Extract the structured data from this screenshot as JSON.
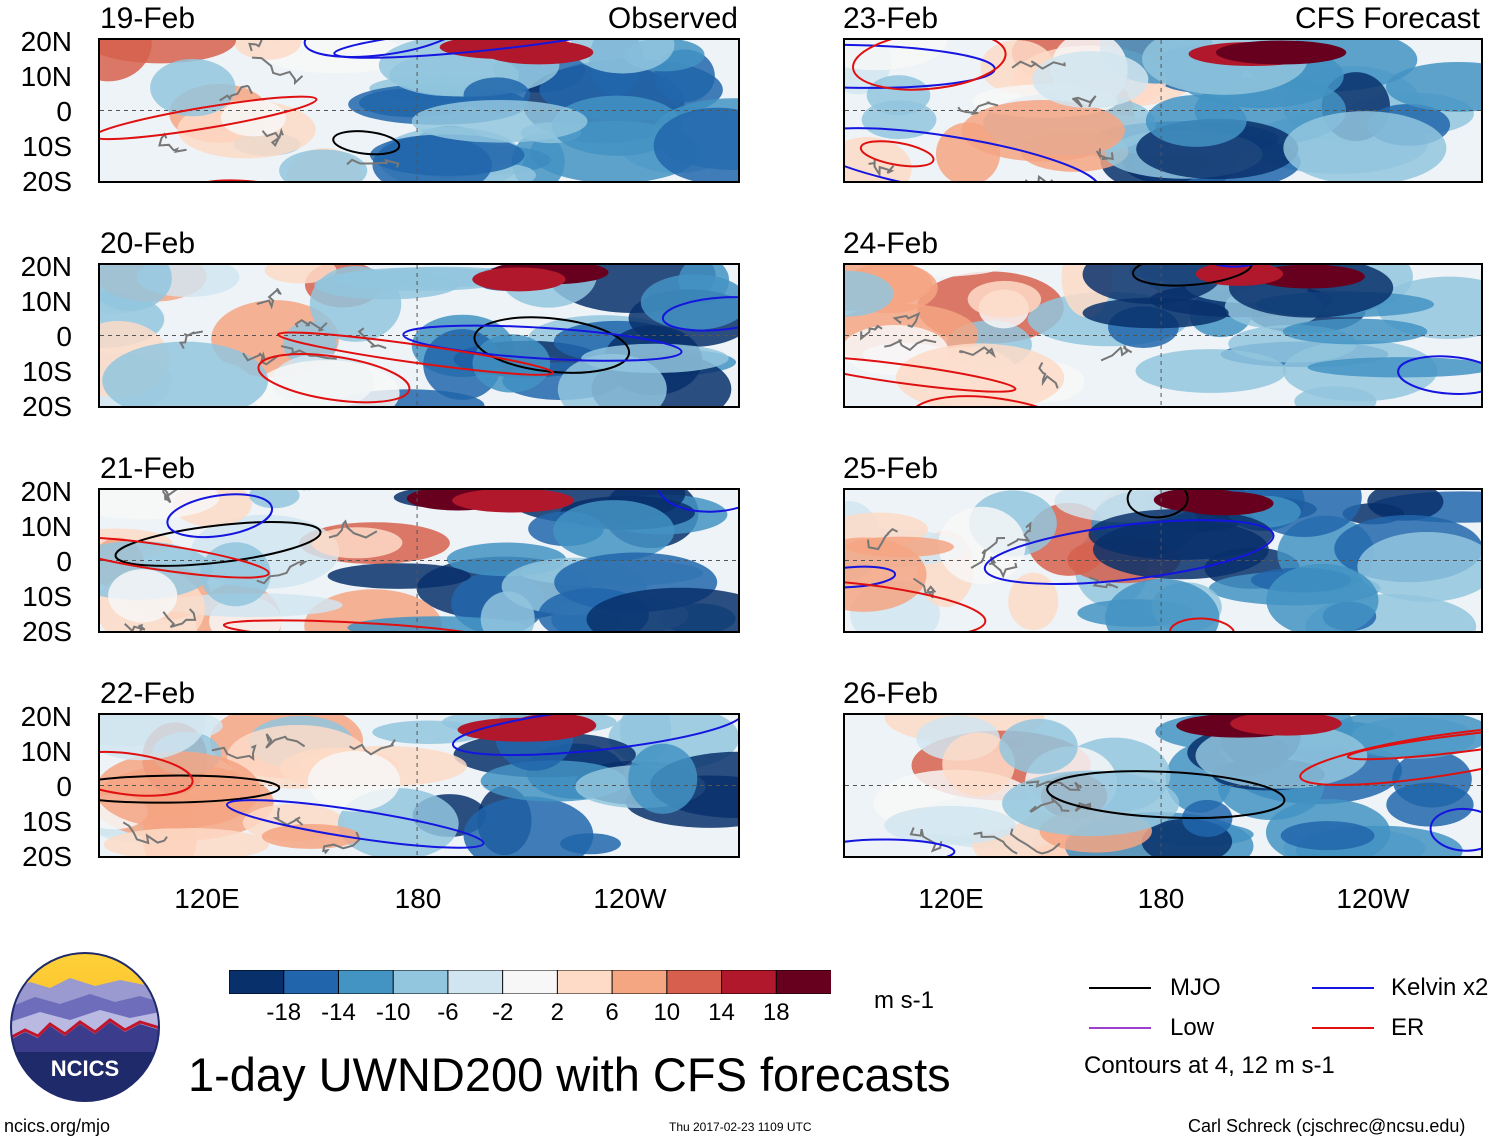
{
  "panels": {
    "observed_tag": "Observed",
    "forecast_tag": "CFS Forecast",
    "observed": [
      {
        "date": "19-Feb"
      },
      {
        "date": "20-Feb"
      },
      {
        "date": "21-Feb"
      },
      {
        "date": "22-Feb"
      }
    ],
    "forecast": [
      {
        "date": "23-Feb"
      },
      {
        "date": "24-Feb"
      },
      {
        "date": "25-Feb"
      },
      {
        "date": "26-Feb"
      }
    ],
    "lat_labels": [
      "20N",
      "10N",
      "0",
      "10S",
      "20S"
    ],
    "lon_labels": [
      "120E",
      "180",
      "120W"
    ]
  },
  "colorbar": {
    "ticks": [
      "-18",
      "-14",
      "-10",
      "-6",
      "-2",
      "2",
      "6",
      "10",
      "14",
      "18"
    ],
    "colors": [
      "#08306b",
      "#2166ac",
      "#4393c3",
      "#92c5de",
      "#d1e5f0",
      "#f7f7f7",
      "#fddbc7",
      "#f4a582",
      "#d6604d",
      "#b2182b",
      "#67001f"
    ],
    "units": "m s-1"
  },
  "legend": {
    "mjo": {
      "label": "MJO",
      "color": "#000000"
    },
    "kelvin": {
      "label": "Kelvin x2",
      "color": "#1515e0"
    },
    "low": {
      "label": "Low",
      "color": "#9b3fd0"
    },
    "er": {
      "label": "ER",
      "color": "#e01010"
    },
    "contours_note": "Contours at 4, 12 m s-1"
  },
  "logo": {
    "text": "NCICS"
  },
  "footer": {
    "title": "1-day UWND200 with CFS forecasts",
    "url": "ncics.org/mjo",
    "timestamp": "Thu 2017-02-23 1109 UTC",
    "author": "Carl Schreck (cjschrec@ncsu.edu)"
  }
}
